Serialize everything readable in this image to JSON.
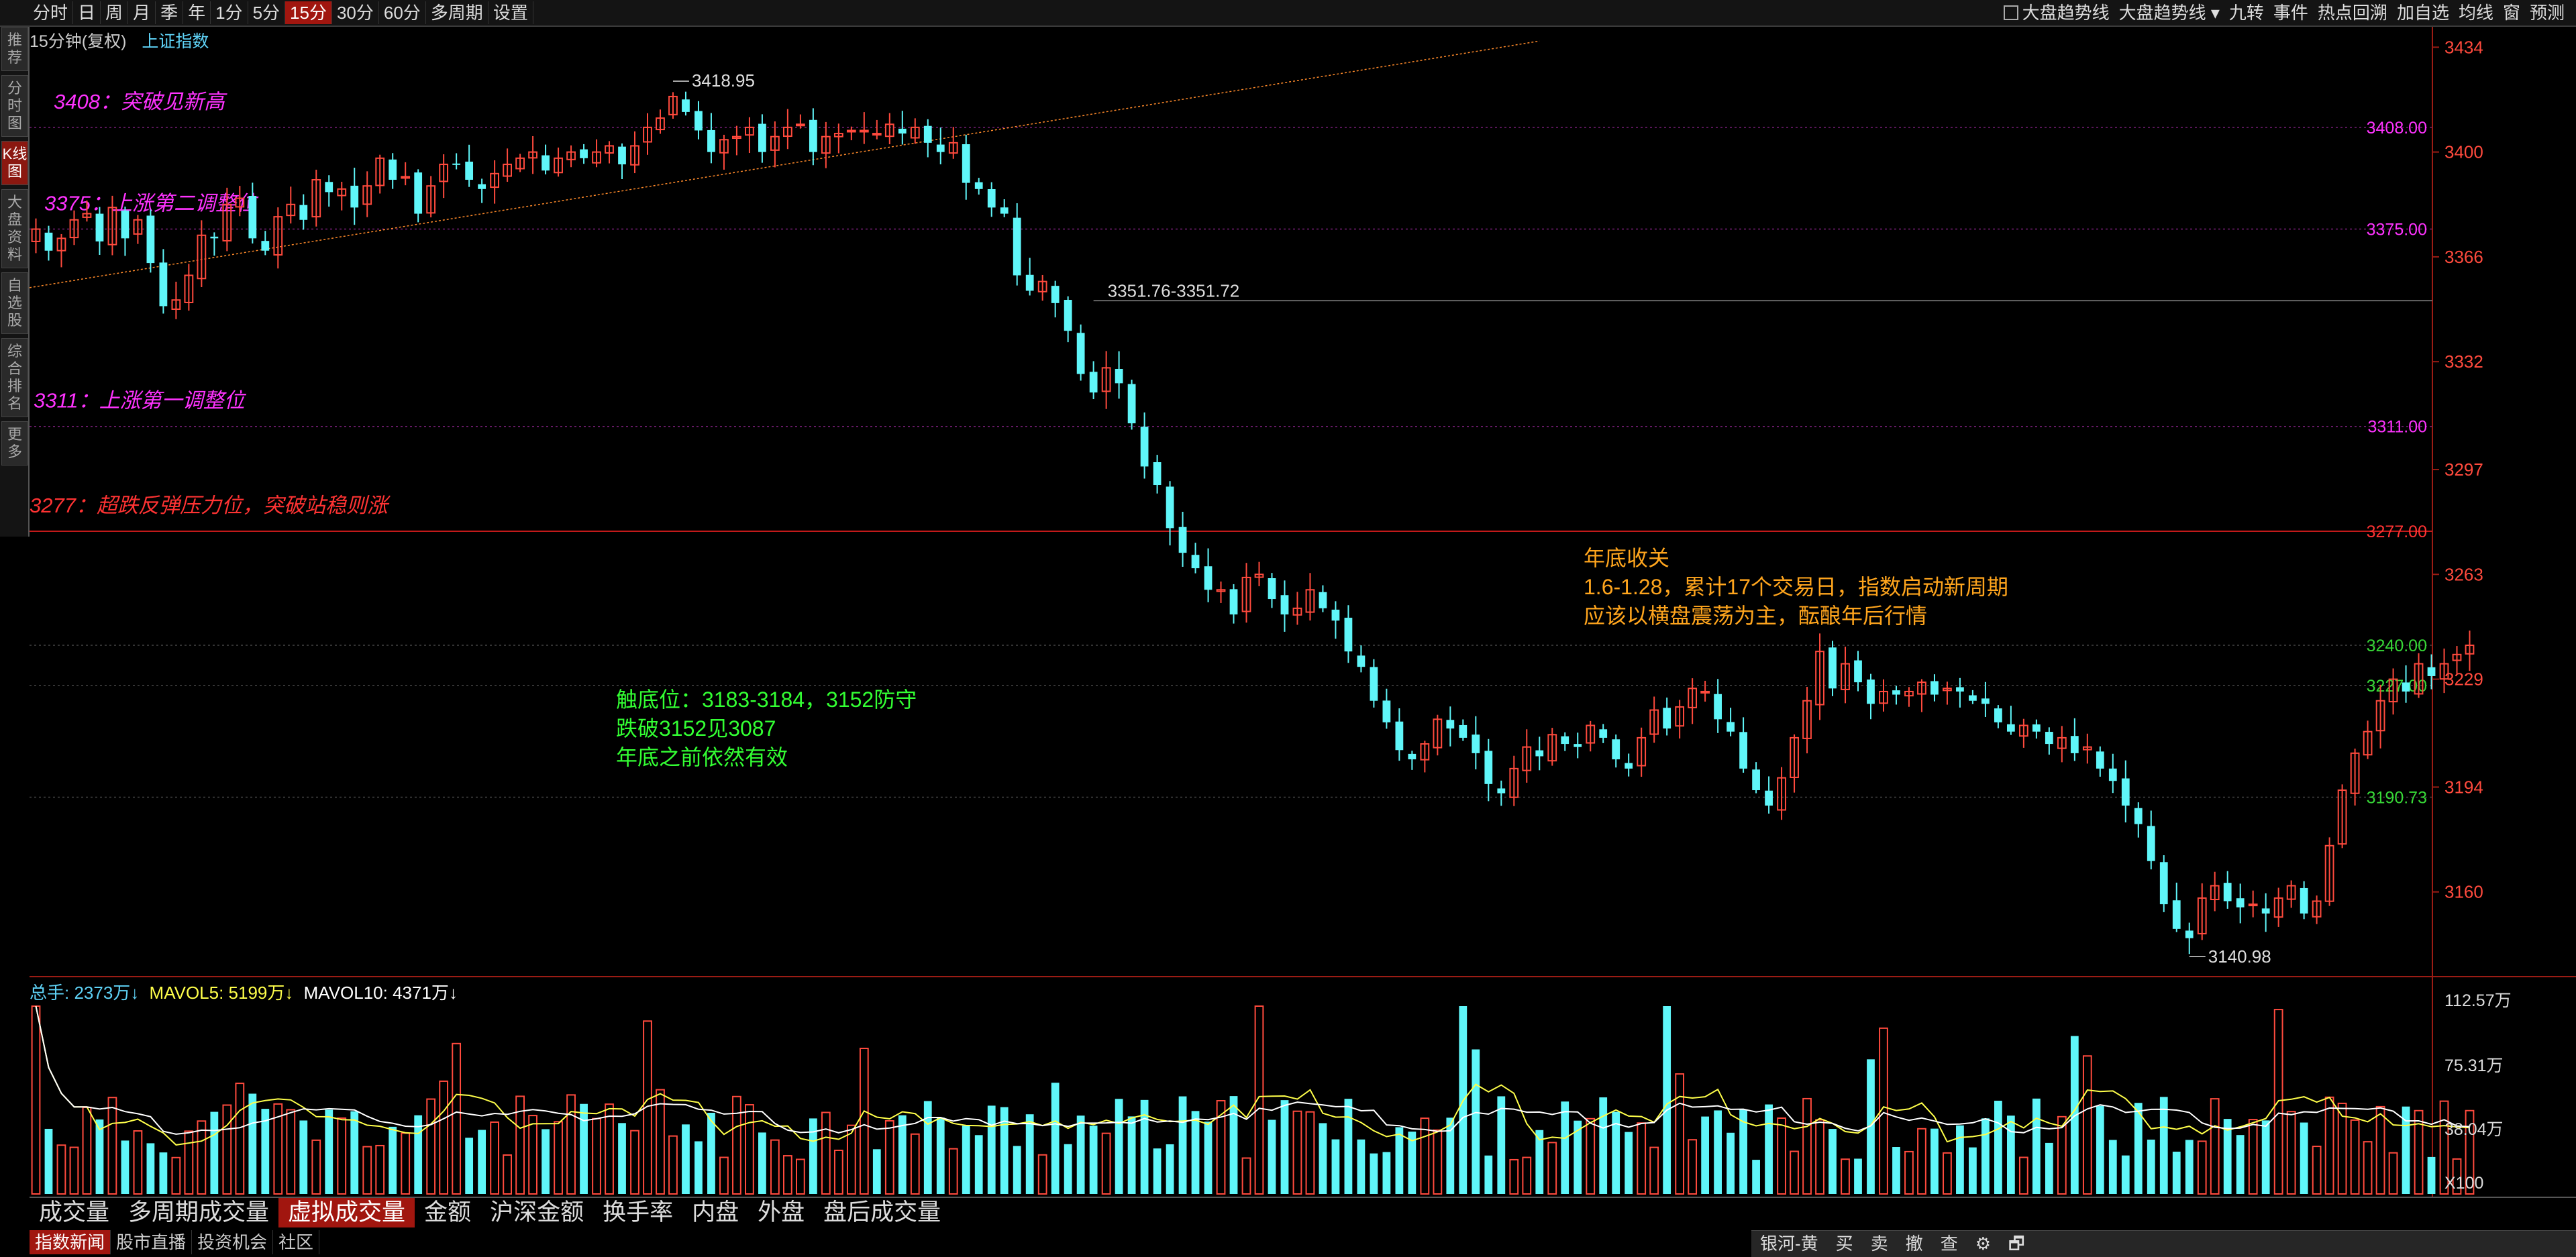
{
  "toolbar": {
    "periods": [
      "分时",
      "日",
      "周",
      "月",
      "季",
      "年",
      "1分",
      "5分",
      "15分",
      "30分",
      "60分",
      "多周期",
      "设置"
    ],
    "active_period": "15分",
    "right_items": [
      "大盘趋势线",
      "大盘趋势线",
      "九转",
      "事件",
      "热点回溯",
      "加自选",
      "均线",
      "窗",
      "预测"
    ]
  },
  "left_nav": [
    "推荐",
    "分时图",
    "K线图",
    "大盘资料",
    "自选股",
    "综合排名",
    "更多"
  ],
  "chart_header": {
    "period": "15分钟(复权)",
    "name": "上证指数"
  },
  "volume_info": {
    "total": {
      "label": "总手: ",
      "value": "2373万",
      "arrow": "↓"
    },
    "ma5": {
      "label": "MAVOL5: ",
      "value": "5199万",
      "arrow": "↓"
    },
    "ma10": {
      "label": "MAVOL10: ",
      "value": "4371万",
      "arrow": "↓"
    }
  },
  "bottom_tabs": [
    "成交量",
    "多周期成交量",
    "虚拟成交量",
    "金额",
    "沪深金额",
    "换手率",
    "内盘",
    "外盘",
    "盘后成交量"
  ],
  "active_bottom_tab": "虚拟成交量",
  "footer_tabs": [
    "指数新闻",
    "股市直播",
    "投资机会",
    "社区"
  ],
  "trade_bar": [
    "银河-黄",
    "买",
    "卖",
    "撤",
    "查",
    "⚙",
    "🗗"
  ],
  "colors": {
    "up": "#ff4a3d",
    "down": "#5ff6f9",
    "ma5": "#ffff4a",
    "ma10": "#ffffff",
    "annot_pink": "#ff33ff",
    "annot_red": "#ff3333",
    "annot_green": "#33ff33",
    "annot_orange": "#ffa51d"
  },
  "chart_data": {
    "type": "candlestick",
    "price_axis": {
      "ticks": [
        3434,
        3400,
        3366,
        3332,
        3297,
        3263,
        3229,
        3194,
        3160
      ]
    },
    "price_ylim": [
      3136,
      3438
    ],
    "levels": [
      {
        "value": 3408,
        "label": "3408.00",
        "note": "3408：突破见新高",
        "color": "#ff33ff"
      },
      {
        "value": 3375,
        "label": "3375.00",
        "note": "3375：上涨第二调整位",
        "color": "#ff33ff"
      },
      {
        "value": 3311,
        "label": "3311.00",
        "note": "3311：上涨第一调整位",
        "color": "#ff33ff"
      },
      {
        "value": 3277,
        "label": "3277.00",
        "note": "3277：超跌反弹压力位，突破站稳则涨",
        "color": "#ff3333"
      },
      {
        "value": 3240,
        "label": "3240.00",
        "note": "",
        "color": "#37d837"
      },
      {
        "value": 3227,
        "label": "3227.00",
        "note": "",
        "color": "#37d837"
      },
      {
        "value": 3190.73,
        "label": "3190.73",
        "note": "",
        "color": "#37d837"
      }
    ],
    "gap_line": {
      "value": 3351.76,
      "label": "3351.76-3351.72"
    },
    "high_label": "3418.95",
    "low_label": "3140.98",
    "annotations": {
      "orange": [
        "年底收关",
        "1.6-1.28，累计17个交易日，指数启动新周期",
        "应该以横盘震荡为主，酝酿年后行情"
      ],
      "green": [
        "触底位：3183-3184，3152防守",
        "跌破3152见3087",
        "年底之前依然有效"
      ]
    },
    "trendline": {
      "from": [
        0,
        3356
      ],
      "to": [
        118,
        3436
      ]
    },
    "close_path": [
      3375,
      3368,
      3372,
      3378,
      3380,
      3371,
      3382,
      3372,
      3378,
      3364,
      3350,
      3352,
      3360,
      3373,
      3372,
      3383,
      3385,
      3372,
      3368,
      3379,
      3383,
      3378,
      3391,
      3387,
      3388,
      3382,
      3389,
      3398,
      3391,
      3392,
      3380,
      3389,
      3396,
      3396,
      3391,
      3388,
      3393,
      3396,
      3398,
      3400,
      3394,
      3398,
      3400,
      3398,
      3400,
      3402,
      3396,
      3402,
      3408,
      3411,
      3418,
      3413,
      3407,
      3400,
      3404,
      3405,
      3408,
      3400,
      3405,
      3408,
      3409,
      3400,
      3405,
      3406,
      3407,
      3407,
      3406,
      3409,
      3406,
      3408,
      3403,
      3400,
      3403,
      3390,
      3388,
      3382,
      3380,
      3360,
      3355,
      3358,
      3351,
      3342,
      3328,
      3322,
      3330,
      3325,
      3312,
      3298,
      3292,
      3278,
      3270,
      3265,
      3258,
      3258,
      3250,
      3262,
      3263,
      3255,
      3250,
      3252,
      3258,
      3252,
      3248,
      3238,
      3233,
      3222,
      3215,
      3206,
      3203,
      3208,
      3216,
      3213,
      3210,
      3205,
      3195,
      3192,
      3200,
      3207,
      3204,
      3211,
      3208,
      3207,
      3214,
      3210,
      3203,
      3200,
      3210,
      3219,
      3213,
      3220,
      3226,
      3225,
      3216,
      3212,
      3200,
      3193,
      3188,
      3197,
      3210,
      3222,
      3238,
      3226,
      3234,
      3228,
      3221,
      3225,
      3224,
      3225,
      3228,
      3224,
      3226,
      3225,
      3222,
      3221,
      3215,
      3212,
      3214,
      3212,
      3208,
      3210,
      3205,
      3207,
      3200,
      3196,
      3188,
      3182,
      3170,
      3156,
      3148,
      3145,
      3158,
      3162,
      3157,
      3155,
      3156,
      3153,
      3158,
      3162,
      3153,
      3157,
      3175,
      3193,
      3205,
      3212,
      3222,
      3229,
      3225,
      3234,
      3230,
      3234,
      3237,
      3240
    ]
  }
}
